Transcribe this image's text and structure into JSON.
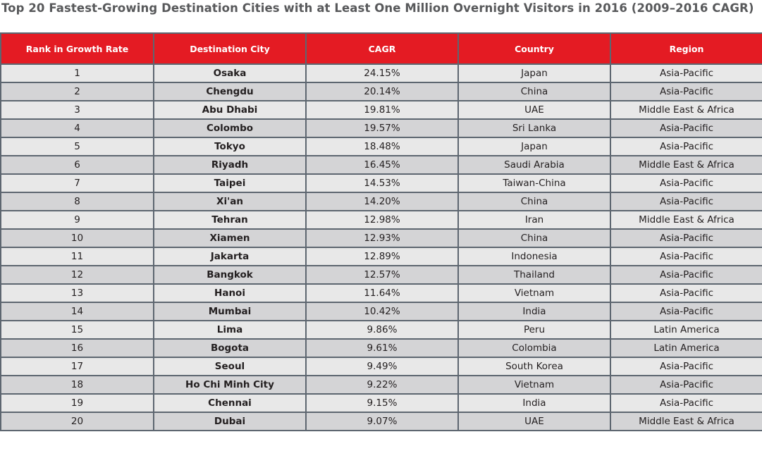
{
  "title": "Top 20 Fastest-Growing Destination Cities with at Least One Million Overnight Visitors in 2016 (2009–2016 CAGR)",
  "colors": {
    "header_bg": "#e41b23",
    "row_odd": "#e8e8e8",
    "row_even": "#d4d4d6",
    "border": "#5d6670"
  },
  "table": {
    "headers": [
      "Rank in Growth Rate",
      "Destination City",
      "CAGR",
      "Country",
      "Region"
    ],
    "rows": [
      [
        "1",
        "Osaka",
        "24.15%",
        "Japan",
        "Asia-Pacific"
      ],
      [
        "2",
        "Chengdu",
        "20.14%",
        "China",
        "Asia-Pacific"
      ],
      [
        "3",
        "Abu Dhabi",
        "19.81%",
        "UAE",
        "Middle East & Africa"
      ],
      [
        "4",
        "Colombo",
        "19.57%",
        "Sri Lanka",
        "Asia-Pacific"
      ],
      [
        "5",
        "Tokyo",
        "18.48%",
        "Japan",
        "Asia-Pacific"
      ],
      [
        "6",
        "Riyadh",
        "16.45%",
        "Saudi Arabia",
        "Middle East & Africa"
      ],
      [
        "7",
        "Taipei",
        "14.53%",
        "Taiwan-China",
        "Asia-Pacific"
      ],
      [
        "8",
        "Xi'an",
        "14.20%",
        "China",
        "Asia-Pacific"
      ],
      [
        "9",
        "Tehran",
        "12.98%",
        "Iran",
        "Middle East & Africa"
      ],
      [
        "10",
        "Xiamen",
        "12.93%",
        "China",
        "Asia-Pacific"
      ],
      [
        "11",
        "Jakarta",
        "12.89%",
        "Indonesia",
        "Asia-Pacific"
      ],
      [
        "12",
        "Bangkok",
        "12.57%",
        "Thailand",
        "Asia-Pacific"
      ],
      [
        "13",
        "Hanoi",
        "11.64%",
        "Vietnam",
        "Asia-Pacific"
      ],
      [
        "14",
        "Mumbai",
        "10.42%",
        "India",
        "Asia-Pacific"
      ],
      [
        "15",
        "Lima",
        "9.86%",
        "Peru",
        "Latin America"
      ],
      [
        "16",
        "Bogota",
        "9.61%",
        "Colombia",
        "Latin America"
      ],
      [
        "17",
        "Seoul",
        "9.49%",
        "South Korea",
        "Asia-Pacific"
      ],
      [
        "18",
        "Ho Chi Minh City",
        "9.22%",
        "Vietnam",
        "Asia-Pacific"
      ],
      [
        "19",
        "Chennai",
        "9.15%",
        "India",
        "Asia-Pacific"
      ],
      [
        "20",
        "Dubai",
        "9.07%",
        "UAE",
        "Middle East & Africa"
      ]
    ]
  }
}
